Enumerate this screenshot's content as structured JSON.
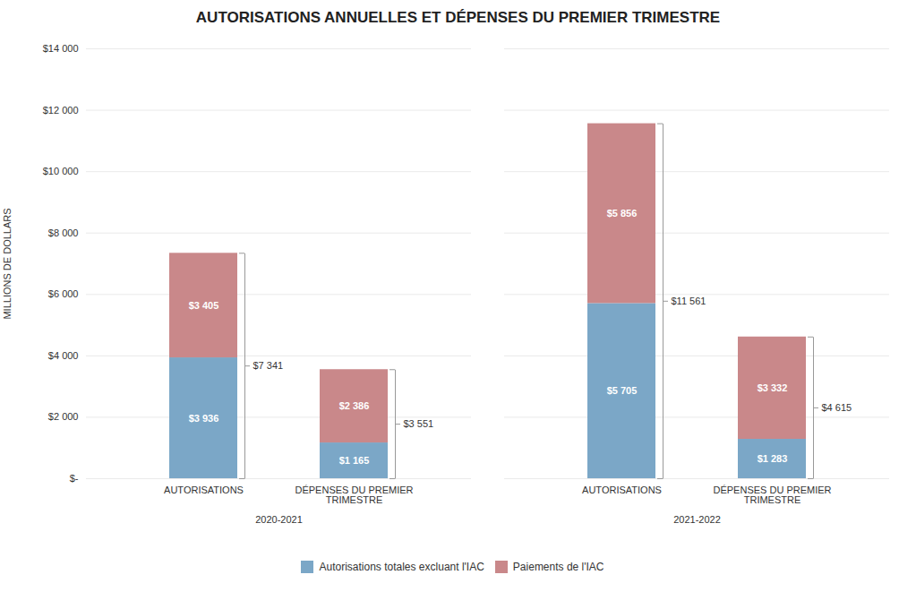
{
  "chart_data": {
    "type": "bar",
    "stacked": true,
    "title": "AUTORISATIONS ANNUELLES ET DÉPENSES DU PREMIER TRIMESTRE",
    "ylabel": "MILLIONS DE DOLLARS",
    "categories": [
      "AUTORISATIONS",
      "DÉPENSES DU PREMIER\nTRIMESTRE",
      "AUTORISATIONS",
      "DÉPENSES DU PREMIER\nTRIMESTRE"
    ],
    "groups": [
      "2020-2021",
      "2020-2021",
      "2021-2022",
      "2021-2022"
    ],
    "series": [
      {
        "name": "Autorisations totales excluant l'IAC",
        "color": "#7BA7C7",
        "values": [
          3936,
          1165,
          5705,
          1283
        ],
        "value_labels": [
          "$3 936",
          "$1 165",
          "$5 705",
          "$1 283"
        ]
      },
      {
        "name": "Paiements de l'IAC",
        "color": "#C9888A",
        "values": [
          3405,
          2386,
          5856,
          3332
        ],
        "value_labels": [
          "$3 405",
          "$2 386",
          "$5 856",
          "$3 332"
        ]
      }
    ],
    "totals": [
      7341,
      3551,
      11561,
      4615
    ],
    "total_labels": [
      "$7 341",
      "$3 551",
      "$11 561",
      "$4 615"
    ],
    "ylim": [
      0,
      14000
    ],
    "yticks": [
      {
        "value": 0,
        "label": "$-"
      },
      {
        "value": 2000,
        "label": "$2 000"
      },
      {
        "value": 4000,
        "label": "$4 000"
      },
      {
        "value": 6000,
        "label": "$6 000"
      },
      {
        "value": 8000,
        "label": "$8 000"
      },
      {
        "value": 10000,
        "label": "$10 000"
      },
      {
        "value": 12000,
        "label": "$12 000"
      },
      {
        "value": 14000,
        "label": "$14 000"
      }
    ],
    "grid": true,
    "data_labels": true,
    "legend": "bottom"
  }
}
